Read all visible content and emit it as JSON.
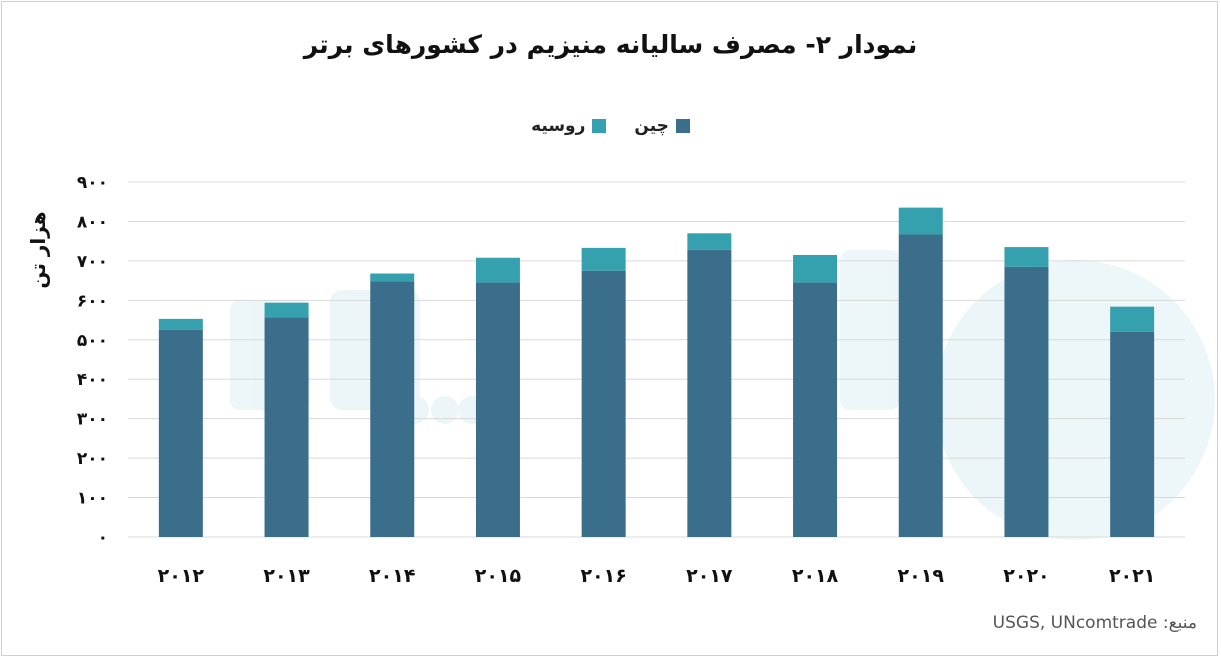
{
  "chart_data": {
    "type": "bar",
    "stacked": true,
    "title": "نمودار ۲- مصرف سالیانه منیزیم در کشورهای برتر",
    "ylabel": "هزار تن",
    "xlabel": "",
    "categories": [
      "۲۰۱۲",
      "۲۰۱۳",
      "۲۰۱۴",
      "۲۰۱۵",
      "۲۰۱۶",
      "۲۰۱۷",
      "۲۰۱۸",
      "۲۰۱۹",
      "۲۰۲۰",
      "۲۰۲۱"
    ],
    "series": [
      {
        "name": "چین",
        "values": [
          525,
          557,
          648,
          645,
          675,
          728,
          645,
          767,
          685,
          520
        ],
        "color": "#3b6e8a"
      },
      {
        "name": "روسیه",
        "values": [
          28,
          37,
          20,
          63,
          58,
          42,
          70,
          68,
          50,
          64
        ],
        "color": "#36a1ae"
      }
    ],
    "ylim": [
      0,
      900
    ],
    "yticks": [
      "۰",
      "۱۰۰",
      "۲۰۰",
      "۳۰۰",
      "۴۰۰",
      "۵۰۰",
      "۶۰۰",
      "۷۰۰",
      "۸۰۰",
      "۹۰۰"
    ],
    "grid": true,
    "legend_position": "top"
  },
  "source": "منبع: USGS, UNcomtrade"
}
